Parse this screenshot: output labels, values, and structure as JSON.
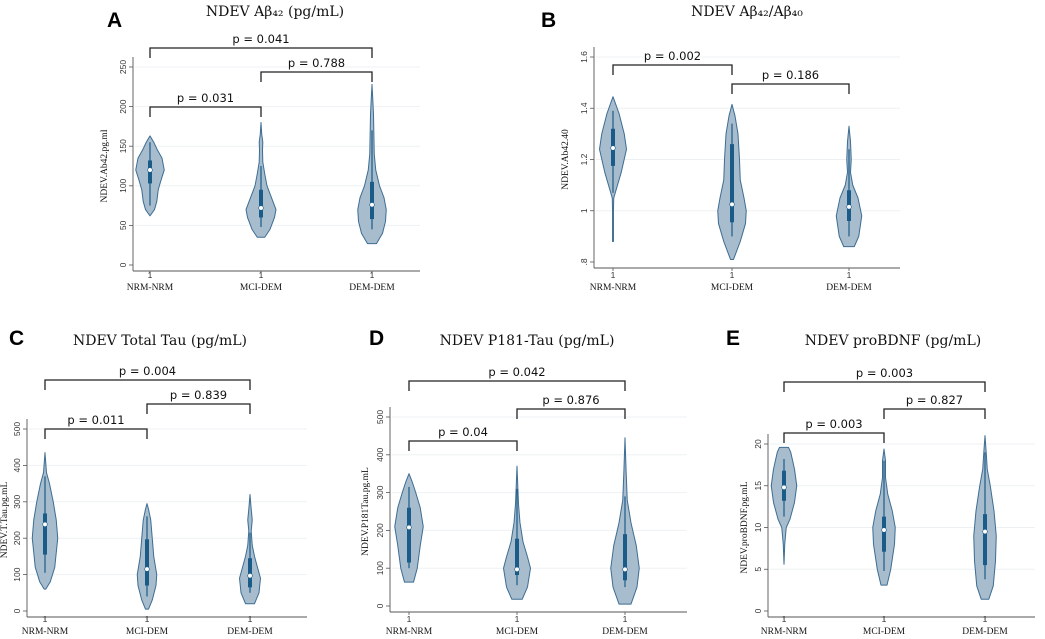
{
  "chart_data": [
    {
      "panel": "A",
      "type": "violin",
      "title": "NDEV Aβ₄₂ (pg/mL)",
      "ylabel": "NDEV.Ab42.pg.ml",
      "ylim": [
        0,
        250
      ],
      "yticks": [
        0,
        50,
        100,
        150,
        200,
        250
      ],
      "ytick_labels": [
        "0",
        "50",
        "100",
        "150",
        "200",
        "250"
      ],
      "grid": true,
      "categories": [
        "NRM-NRM",
        "MCI-DEM",
        "DEM-DEM"
      ],
      "category_ticks": [
        "1",
        "1",
        "1"
      ],
      "comparisons": [
        {
          "groups": [
            0,
            2
          ],
          "label": "p = 0.041"
        },
        {
          "groups": [
            1,
            2
          ],
          "label": "p = 0.788"
        },
        {
          "groups": [
            0,
            1
          ],
          "label": "p = 0.031"
        }
      ],
      "violins": [
        {
          "median": 120,
          "q1": 103,
          "q3": 132,
          "whisker": [
            75,
            155
          ],
          "density": [
            [
              62,
              0
            ],
            [
              70,
              0.3
            ],
            [
              80,
              0.45
            ],
            [
              95,
              0.55
            ],
            [
              105,
              0.7
            ],
            [
              120,
              0.95
            ],
            [
              135,
              0.8
            ],
            [
              145,
              0.5
            ],
            [
              155,
              0.25
            ],
            [
              163,
              0
            ]
          ]
        },
        {
          "median": 72,
          "q1": 60,
          "q3": 95,
          "whisker": [
            48,
            125
          ],
          "density": [
            [
              35,
              0.25
            ],
            [
              45,
              0.6
            ],
            [
              60,
              0.9
            ],
            [
              70,
              1
            ],
            [
              85,
              0.7
            ],
            [
              100,
              0.4
            ],
            [
              115,
              0.25
            ],
            [
              130,
              0.12
            ],
            [
              145,
              0.1
            ],
            [
              155,
              0.12
            ],
            [
              165,
              0.05
            ],
            [
              180,
              0
            ]
          ]
        },
        {
          "median": 76,
          "q1": 58,
          "q3": 105,
          "whisker": [
            45,
            170
          ],
          "density": [
            [
              27,
              0.3
            ],
            [
              40,
              0.7
            ],
            [
              55,
              0.9
            ],
            [
              70,
              0.95
            ],
            [
              85,
              0.8
            ],
            [
              100,
              0.5
            ],
            [
              120,
              0.25
            ],
            [
              140,
              0.15
            ],
            [
              170,
              0.12
            ],
            [
              190,
              0.1
            ],
            [
              210,
              0.05
            ],
            [
              228,
              0
            ]
          ]
        }
      ]
    },
    {
      "panel": "B",
      "type": "violin",
      "title": "NDEV Aβ₄₂/Aβ₄₀",
      "ylabel": "NDEV.Ab42.40",
      "ylim": [
        0.8,
        1.6
      ],
      "yticks": [
        0.8,
        1.0,
        1.2,
        1.4,
        1.6
      ],
      "ytick_labels": [
        ".8",
        "1",
        "1.2",
        "1.4",
        "1.6"
      ],
      "grid": true,
      "categories": [
        "NRM-NRM",
        "MCI-DEM",
        "DEM-DEM"
      ],
      "category_ticks": [
        "1",
        "1",
        "1"
      ],
      "comparisons": [
        {
          "groups": [
            0,
            1
          ],
          "label": "p = 0.002"
        },
        {
          "groups": [
            1,
            2
          ],
          "label": "p = 0.186"
        }
      ],
      "violins": [
        {
          "median": 1.245,
          "q1": 1.175,
          "q3": 1.32,
          "whisker": [
            1.07,
            1.39
          ],
          "density": [
            [
              0.88,
              0.03
            ],
            [
              1.0,
              0.03
            ],
            [
              1.05,
              0.05
            ],
            [
              1.08,
              0.2
            ],
            [
              1.15,
              0.55
            ],
            [
              1.24,
              0.9
            ],
            [
              1.3,
              0.75
            ],
            [
              1.38,
              0.4
            ],
            [
              1.445,
              0
            ]
          ]
        },
        {
          "median": 1.025,
          "q1": 0.955,
          "q3": 1.26,
          "whisker": [
            0.9,
            1.34
          ],
          "density": [
            [
              0.81,
              0.1
            ],
            [
              0.88,
              0.55
            ],
            [
              0.95,
              0.9
            ],
            [
              1.0,
              0.95
            ],
            [
              1.05,
              0.8
            ],
            [
              1.12,
              0.55
            ],
            [
              1.2,
              0.5
            ],
            [
              1.3,
              0.4
            ],
            [
              1.37,
              0.2
            ],
            [
              1.415,
              0
            ]
          ]
        },
        {
          "median": 1.015,
          "q1": 0.96,
          "q3": 1.08,
          "whisker": [
            0.9,
            1.24
          ],
          "density": [
            [
              0.86,
              0.35
            ],
            [
              0.9,
              0.65
            ],
            [
              0.98,
              0.85
            ],
            [
              1.05,
              0.6
            ],
            [
              1.1,
              0.25
            ],
            [
              1.15,
              0.1
            ],
            [
              1.2,
              0.15
            ],
            [
              1.27,
              0.1
            ],
            [
              1.33,
              0
            ]
          ]
        }
      ]
    },
    {
      "panel": "C",
      "type": "violin",
      "title": "NDEV Total Tau (pg/mL)",
      "ylabel": "NDEV.T.Tau.pg.mL",
      "ylim": [
        0,
        500
      ],
      "yticks": [
        0,
        100,
        200,
        300,
        400,
        500
      ],
      "ytick_labels": [
        "0",
        "100",
        "200",
        "300",
        "400",
        "500"
      ],
      "grid": true,
      "categories": [
        "NRM-NRM",
        "MCI-DEM",
        "DEM-DEM"
      ],
      "category_ticks": [
        "1",
        "1",
        "1"
      ],
      "comparisons": [
        {
          "groups": [
            0,
            2
          ],
          "label": "p = 0.004"
        },
        {
          "groups": [
            1,
            2
          ],
          "label": "p = 0.839"
        },
        {
          "groups": [
            0,
            1
          ],
          "label": "p = 0.011"
        }
      ],
      "violins": [
        {
          "median": 238,
          "q1": 155,
          "q3": 268,
          "whisker": [
            105,
            370
          ],
          "density": [
            [
              60,
              0.05
            ],
            [
              80,
              0.35
            ],
            [
              120,
              0.65
            ],
            [
              200,
              0.85
            ],
            [
              250,
              0.75
            ],
            [
              300,
              0.55
            ],
            [
              350,
              0.3
            ],
            [
              380,
              0.1
            ],
            [
              435,
              0
            ]
          ]
        },
        {
          "median": 115,
          "q1": 70,
          "q3": 197,
          "whisker": [
            40,
            260
          ],
          "density": [
            [
              5,
              0.1
            ],
            [
              30,
              0.35
            ],
            [
              70,
              0.6
            ],
            [
              100,
              0.65
            ],
            [
              150,
              0.45
            ],
            [
              200,
              0.35
            ],
            [
              250,
              0.25
            ],
            [
              280,
              0.1
            ],
            [
              295,
              0
            ]
          ]
        },
        {
          "median": 97,
          "q1": 65,
          "q3": 145,
          "whisker": [
            50,
            215
          ],
          "density": [
            [
              20,
              0.3
            ],
            [
              50,
              0.6
            ],
            [
              90,
              0.7
            ],
            [
              120,
              0.5
            ],
            [
              150,
              0.3
            ],
            [
              180,
              0.15
            ],
            [
              220,
              0.08
            ],
            [
              250,
              0.15
            ],
            [
              280,
              0.08
            ],
            [
              320,
              0
            ]
          ]
        }
      ]
    },
    {
      "panel": "D",
      "type": "violin",
      "title": "NDEV P181-Tau (pg/mL)",
      "ylabel": "NDEV.P181Tau.pg.mL",
      "ylim": [
        0,
        500
      ],
      "yticks": [
        0,
        100,
        200,
        300,
        400,
        500
      ],
      "ytick_labels": [
        "0",
        "100",
        "200",
        "300",
        "400",
        "500"
      ],
      "grid": true,
      "categories": [
        "NRM-NRM",
        "MCI-DEM",
        "DEM-DEM"
      ],
      "category_ticks": [
        "1",
        "1",
        "1"
      ],
      "comparisons": [
        {
          "groups": [
            0,
            2
          ],
          "label": "p = 0.042"
        },
        {
          "groups": [
            1,
            2
          ],
          "label": "p = 0.876"
        },
        {
          "groups": [
            0,
            1
          ],
          "label": "p = 0.04"
        }
      ],
      "violins": [
        {
          "median": 208,
          "q1": 115,
          "q3": 260,
          "whisker": [
            100,
            315
          ],
          "density": [
            [
              63,
              0.3
            ],
            [
              100,
              0.55
            ],
            [
              160,
              0.75
            ],
            [
              210,
              0.95
            ],
            [
              260,
              0.75
            ],
            [
              300,
              0.45
            ],
            [
              330,
              0.2
            ],
            [
              350,
              0
            ]
          ]
        },
        {
          "median": 97,
          "q1": 82,
          "q3": 178,
          "whisker": [
            55,
            310
          ],
          "density": [
            [
              18,
              0.35
            ],
            [
              50,
              0.7
            ],
            [
              100,
              0.9
            ],
            [
              130,
              0.7
            ],
            [
              170,
              0.4
            ],
            [
              220,
              0.2
            ],
            [
              270,
              0.1
            ],
            [
              320,
              0.05
            ],
            [
              370,
              0
            ]
          ]
        },
        {
          "median": 97,
          "q1": 68,
          "q3": 190,
          "whisker": [
            50,
            290
          ],
          "density": [
            [
              5,
              0.4
            ],
            [
              50,
              0.8
            ],
            [
              100,
              0.95
            ],
            [
              160,
              0.75
            ],
            [
              220,
              0.4
            ],
            [
              280,
              0.15
            ],
            [
              350,
              0.08
            ],
            [
              445,
              0
            ]
          ]
        }
      ]
    },
    {
      "panel": "E",
      "type": "violin",
      "title": "NDEV proBDNF (pg/mL)",
      "ylabel": "NDEV.proBDNF.pg.mL",
      "ylim": [
        0,
        20
      ],
      "yticks": [
        0,
        5,
        10,
        15,
        20
      ],
      "ytick_labels": [
        "0",
        "5",
        "10",
        "15",
        "20"
      ],
      "grid": true,
      "categories": [
        "NRM-NRM",
        "MCI-DEM",
        "DEM-DEM"
      ],
      "category_ticks": [
        "1",
        "1",
        "1"
      ],
      "comparisons": [
        {
          "groups": [
            0,
            2
          ],
          "label": "p = 0.003"
        },
        {
          "groups": [
            1,
            2
          ],
          "label": "p = 0.827"
        },
        {
          "groups": [
            0,
            1
          ],
          "label": "p = 0.003"
        }
      ],
      "violins": [
        {
          "median": 14.8,
          "q1": 13.2,
          "q3": 16.8,
          "whisker": [
            11.3,
            18.2
          ],
          "density": [
            [
              5.6,
              0
            ],
            [
              8,
              0.05
            ],
            [
              10,
              0.15
            ],
            [
              11,
              0.4
            ],
            [
              13,
              0.7
            ],
            [
              15,
              0.85
            ],
            [
              17,
              0.7
            ],
            [
              19,
              0.45
            ],
            [
              19.6,
              0.3
            ]
          ]
        },
        {
          "median": 9.7,
          "q1": 7.1,
          "q3": 11.3,
          "whisker": [
            4.8,
            18
          ],
          "density": [
            [
              3.1,
              0.2
            ],
            [
              5,
              0.45
            ],
            [
              8,
              0.7
            ],
            [
              10,
              0.75
            ],
            [
              12,
              0.55
            ],
            [
              14,
              0.25
            ],
            [
              16,
              0.1
            ],
            [
              18,
              0.1
            ],
            [
              19.4,
              0
            ]
          ]
        },
        {
          "median": 9.5,
          "q1": 5.5,
          "q3": 11.6,
          "whisker": [
            3.8,
            19
          ],
          "density": [
            [
              1.4,
              0.25
            ],
            [
              3,
              0.55
            ],
            [
              6,
              0.7
            ],
            [
              9,
              0.75
            ],
            [
              12,
              0.6
            ],
            [
              15,
              0.35
            ],
            [
              17,
              0.15
            ],
            [
              19,
              0.08
            ],
            [
              21,
              0
            ]
          ]
        }
      ]
    }
  ],
  "colors": {
    "violin_fill": "#a7bccd",
    "violin_stroke": "#3d6d93",
    "box": "#1b5b87",
    "median": "#ffffff",
    "grid": "#eef1f4",
    "bracket": "#222222"
  }
}
